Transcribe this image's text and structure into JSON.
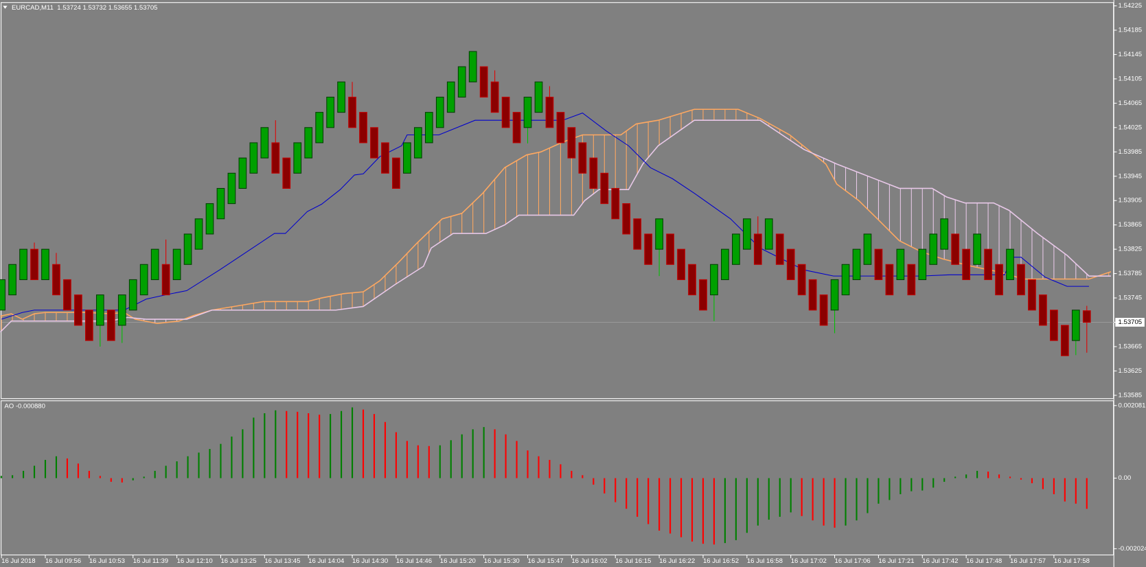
{
  "chart_data": [
    {
      "type": "candlestick",
      "title": "EURCAD,M11  1.53724 1.53732 1.53655 1.53705",
      "categories": [
        "16 Jul 2018",
        null,
        null,
        null,
        "16 Jul 09:56",
        null,
        null,
        null,
        "16 Jul 10:53",
        null,
        null,
        null,
        "16 Jul 11:39",
        null,
        null,
        null,
        "16 Jul 12:10",
        null,
        null,
        null,
        "16 Jul 13:25",
        null,
        null,
        null,
        "16 Jul 13:45",
        null,
        null,
        null,
        "16 Jul 14:04",
        null,
        null,
        null,
        "16 Jul 14:30",
        null,
        null,
        null,
        "16 Jul 14:46",
        null,
        null,
        null,
        "16 Jul 15:20",
        null,
        null,
        null,
        "16 Jul 15:30",
        null,
        null,
        null,
        "16 Jul 15:47",
        null,
        null,
        null,
        "16 Jul 16:02",
        null,
        null,
        null,
        "16 Jul 16:15",
        null,
        null,
        null,
        "16 Jul 16:22",
        null,
        null,
        null,
        "16 Jul 16:52",
        null,
        null,
        null,
        "16 Jul 16:58",
        null,
        null,
        null,
        "16 Jul 17:02",
        null,
        null,
        null,
        "16 Jul 17:06",
        null,
        null,
        null,
        "16 Jul 17:21",
        null,
        null,
        null,
        "16 Jul 17:42",
        null,
        null,
        null,
        "16 Jul 17:48",
        null,
        null,
        null,
        "16 Jul 17:57",
        null,
        null,
        null,
        "16 Jul 17:58",
        null,
        null,
        null
      ],
      "open": [
        1.53725,
        1.5375,
        1.53775,
        1.53825,
        1.53775,
        1.538,
        1.53775,
        1.5375,
        1.53725,
        1.537,
        1.53725,
        1.537,
        1.53725,
        1.5375,
        1.53775,
        1.538,
        1.53775,
        1.538,
        1.53825,
        1.5385,
        1.53875,
        1.539,
        1.53925,
        1.5395,
        1.53975,
        1.54,
        1.53975,
        1.5395,
        1.53975,
        1.54,
        1.54025,
        1.5405,
        1.54075,
        1.5405,
        1.54025,
        1.54,
        1.53975,
        1.5395,
        1.53975,
        1.54,
        1.54025,
        1.5405,
        1.54075,
        1.541,
        1.54125,
        1.541,
        1.54075,
        1.5405,
        1.54025,
        1.5405,
        1.54075,
        1.5405,
        1.54025,
        1.54,
        1.53975,
        1.5395,
        1.53925,
        1.539,
        1.53875,
        1.5385,
        1.53825,
        1.5385,
        1.53825,
        1.538,
        1.53775,
        1.5375,
        1.53775,
        1.538,
        1.53825,
        1.5385,
        1.53825,
        1.5385,
        1.53825,
        1.538,
        1.53775,
        1.5375,
        1.53725,
        1.5375,
        1.53775,
        1.538,
        1.53825,
        1.538,
        1.53775,
        1.538,
        1.53775,
        1.538,
        1.53825,
        1.5385,
        1.53825,
        1.538,
        1.53825,
        1.538,
        1.53775,
        1.538,
        1.53775,
        1.5375,
        1.53725,
        1.537,
        1.53675,
        1.53724
      ],
      "high": [
        1.53775,
        1.538,
        1.53825,
        1.53836,
        1.53825,
        1.53819,
        1.53775,
        1.5375,
        1.53725,
        1.5375,
        1.53725,
        1.5375,
        1.53775,
        1.538,
        1.53825,
        1.53841,
        1.53825,
        1.5385,
        1.53875,
        1.539,
        1.53925,
        1.5395,
        1.53975,
        1.54,
        1.54025,
        1.54037,
        1.53975,
        1.54,
        1.54025,
        1.5405,
        1.54075,
        1.541,
        1.541,
        1.5405,
        1.54025,
        1.54,
        1.53975,
        1.54,
        1.54025,
        1.5405,
        1.54075,
        1.541,
        1.54125,
        1.5415,
        1.54125,
        1.54119,
        1.54075,
        1.5405,
        1.54075,
        1.541,
        1.54093,
        1.5405,
        1.54025,
        1.54,
        1.53975,
        1.5395,
        1.53925,
        1.539,
        1.53875,
        1.5385,
        1.53875,
        1.5385,
        1.53825,
        1.538,
        1.53775,
        1.538,
        1.53825,
        1.5385,
        1.53875,
        1.53879,
        1.53875,
        1.5385,
        1.53825,
        1.538,
        1.53775,
        1.5375,
        1.53775,
        1.538,
        1.53825,
        1.5385,
        1.53825,
        1.538,
        1.53825,
        1.538,
        1.53825,
        1.5385,
        1.53875,
        1.5385,
        1.53825,
        1.5385,
        1.53825,
        1.538,
        1.53825,
        1.538,
        1.53775,
        1.5375,
        1.53725,
        1.537,
        1.53725,
        1.53732
      ],
      "low": [
        1.53725,
        1.5375,
        1.53775,
        1.53775,
        1.53775,
        1.5375,
        1.53725,
        1.537,
        1.53675,
        1.53665,
        1.53675,
        1.53671,
        1.53725,
        1.5375,
        1.53775,
        1.5375,
        1.53775,
        1.538,
        1.53825,
        1.5385,
        1.53875,
        1.539,
        1.53925,
        1.5395,
        1.53975,
        1.5395,
        1.53925,
        1.5395,
        1.53975,
        1.54,
        1.54025,
        1.5405,
        1.54025,
        1.54,
        1.53975,
        1.5395,
        1.53925,
        1.5395,
        1.53975,
        1.54,
        1.54025,
        1.5405,
        1.54075,
        1.541,
        1.54075,
        1.5405,
        1.54025,
        1.54,
        1.53999,
        1.5405,
        1.54025,
        1.54,
        1.53975,
        1.5395,
        1.53925,
        1.539,
        1.53875,
        1.5385,
        1.53825,
        1.538,
        1.53781,
        1.538,
        1.53775,
        1.5375,
        1.53725,
        1.53707,
        1.53775,
        1.538,
        1.53825,
        1.538,
        1.53825,
        1.538,
        1.53775,
        1.5375,
        1.53725,
        1.537,
        1.53687,
        1.5375,
        1.53775,
        1.538,
        1.53775,
        1.5375,
        1.53775,
        1.5375,
        1.53775,
        1.538,
        1.53825,
        1.538,
        1.53775,
        1.538,
        1.53775,
        1.5375,
        1.53775,
        1.5375,
        1.53725,
        1.537,
        1.53675,
        1.5365,
        1.53651,
        1.53655
      ],
      "close": [
        1.53775,
        1.538,
        1.53825,
        1.53775,
        1.53825,
        1.5375,
        1.53725,
        1.537,
        1.53675,
        1.5375,
        1.53675,
        1.5375,
        1.53775,
        1.538,
        1.53825,
        1.5375,
        1.53825,
        1.5385,
        1.53875,
        1.539,
        1.53925,
        1.5395,
        1.53975,
        1.54,
        1.54025,
        1.5395,
        1.53925,
        1.54,
        1.54025,
        1.5405,
        1.54075,
        1.541,
        1.54025,
        1.54,
        1.53975,
        1.5395,
        1.53925,
        1.54,
        1.54025,
        1.5405,
        1.54075,
        1.541,
        1.54125,
        1.5415,
        1.54075,
        1.5405,
        1.54025,
        1.54,
        1.54075,
        1.541,
        1.54025,
        1.54,
        1.53975,
        1.5395,
        1.53925,
        1.539,
        1.53875,
        1.5385,
        1.53825,
        1.538,
        1.53875,
        1.538,
        1.53775,
        1.5375,
        1.53725,
        1.538,
        1.53825,
        1.5385,
        1.53875,
        1.538,
        1.53875,
        1.538,
        1.53775,
        1.5375,
        1.53725,
        1.537,
        1.53775,
        1.538,
        1.53825,
        1.5385,
        1.53775,
        1.5375,
        1.53825,
        1.5375,
        1.53825,
        1.5385,
        1.53875,
        1.538,
        1.53775,
        1.5385,
        1.53775,
        1.5375,
        1.53825,
        1.5375,
        1.53725,
        1.537,
        1.53675,
        1.5365,
        1.53725,
        1.53705
      ],
      "up_color": "#00a000",
      "down_color": "#8b0000",
      "ylim": [
        1.53579,
        1.54231
      ],
      "yticks": [
        1.54225,
        1.54185,
        1.54145,
        1.54105,
        1.54065,
        1.54025,
        1.53985,
        1.53945,
        1.53905,
        1.53865,
        1.53825,
        1.53785,
        1.53745,
        1.53705,
        1.53665,
        1.53625,
        1.53585
      ],
      "current_price": 1.53705,
      "cloud": {
        "span_a": {
          "color": "#ffa860",
          "x": [
            -0.1,
            0.9,
            1.9,
            3,
            4,
            7.9,
            9.9,
            11.2,
            12.2,
            14.2,
            16.2,
            17.5,
            19.2,
            21.9,
            23.9,
            27.9,
            29.2,
            31.2,
            33,
            34.5,
            36.2,
            37.9,
            40.2,
            42,
            43.9,
            45.9,
            47.9,
            49.2,
            51.2,
            53,
            56.5,
            57.9,
            59.9,
            63.2,
            67.2,
            69.2,
            71.9,
            75.2,
            76.2,
            78.2,
            79.9,
            81.9,
            83.9,
            85.9,
            88.5,
            91.2,
            93.2,
            99.2,
            101.2
          ],
          "values": [
            1.53715,
            1.53719,
            1.5371,
            1.53719,
            1.53721,
            1.53721,
            1.53719,
            1.53721,
            1.5371,
            1.53703,
            1.53707,
            1.53716,
            1.53725,
            1.53733,
            1.53739,
            1.53739,
            1.53745,
            1.53752,
            1.53755,
            1.53773,
            1.53803,
            1.53835,
            1.53875,
            1.53884,
            1.53917,
            1.53959,
            1.5398,
            1.53985,
            1.54001,
            1.54013,
            1.54013,
            1.54031,
            1.54037,
            1.54055,
            1.54055,
            1.5404,
            1.54013,
            1.53965,
            1.53932,
            1.53905,
            1.53875,
            1.53839,
            1.53821,
            1.53809,
            1.53797,
            1.53787,
            1.53776,
            1.53776,
            1.53788
          ]
        },
        "span_b": {
          "color": "#e8c8e8",
          "x": [
            -0.1,
            0.9,
            9.9,
            11.5,
            13.2,
            16.9,
            19.2,
            30.5,
            33,
            35.9,
            38.5,
            39.2,
            41.2,
            44.2,
            45.9,
            47.2,
            52.2,
            53.2,
            54.5,
            57.2,
            58.5,
            59.9,
            63.2,
            69.2,
            73.2,
            76.2,
            81.9,
            84.9,
            86.2,
            87.9,
            90.5,
            91.9,
            94.5,
            97.2,
            99.2,
            101.2
          ],
          "values": [
            1.53689,
            1.53707,
            1.53707,
            1.53713,
            1.5371,
            1.5371,
            1.53725,
            1.53725,
            1.53731,
            1.53767,
            1.53797,
            1.53827,
            1.53851,
            1.53851,
            1.53865,
            1.53881,
            1.53881,
            1.53905,
            1.53923,
            1.53923,
            1.53965,
            1.53995,
            1.54037,
            1.54037,
            1.53989,
            1.53965,
            1.53925,
            1.53925,
            1.53911,
            1.53901,
            1.53901,
            1.53889,
            1.53851,
            1.53815,
            1.53781,
            1.53781
          ]
        }
      },
      "lines": [
        {
          "color": "#0000cc",
          "x": [
            0,
            1.9,
            3,
            7.2,
            11.2,
            13.2,
            15.2,
            16.9,
            19.9,
            24.9,
            25.9,
            27.9,
            29.2,
            30.9,
            32.2,
            33,
            34.5,
            36.5,
            37,
            39.9,
            43.2,
            51.2,
            53,
            55.2,
            57.2,
            59.2,
            61.2,
            63.2,
            66.5,
            69.2,
            71.2,
            73.2,
            75.9,
            83.9,
            86.5,
            91.5,
            92.2,
            93,
            95.2,
            97.2,
            99.2
          ],
          "values": [
            1.5371,
            1.53721,
            1.53725,
            1.53725,
            1.53725,
            1.53743,
            1.53751,
            1.53757,
            1.53791,
            1.53851,
            1.53851,
            1.53887,
            1.53899,
            1.53923,
            1.53947,
            1.53949,
            1.53977,
            1.53995,
            1.54013,
            1.54013,
            1.54037,
            1.54037,
            1.54049,
            1.54019,
            1.53995,
            1.53959,
            1.53941,
            1.53917,
            1.53875,
            1.53827,
            1.53809,
            1.53791,
            1.53781,
            1.53781,
            1.53783,
            1.53783,
            1.53812,
            1.53812,
            1.53779,
            1.53764,
            1.53764
          ]
        }
      ]
    },
    {
      "type": "histogram",
      "title": "AO -0.000880",
      "values": [
        6.3e-05,
        8.4e-05,
        0.000209,
        0.000355,
        0.000523,
        0.000627,
        0.000564,
        0.000418,
        0.000209,
        6.3e-05,
        -0.000105,
        -0.000125,
        -6.3e-05,
        4.2e-05,
        0.000209,
        0.000355,
        0.000481,
        0.000627,
        0.000732,
        0.000836,
        0.000982,
        0.001191,
        0.0014,
        0.001735,
        0.00186,
        0.001944,
        0.001923,
        0.001902,
        0.00186,
        0.001818,
        0.001839,
        0.001923,
        0.002027,
        0.001965,
        0.001839,
        0.001609,
        0.001317,
        0.001066,
        0.000941,
        0.00092,
        0.000941,
        0.001087,
        0.001254,
        0.0014,
        0.001463,
        0.0014,
        0.001254,
        0.001066,
        0.000794,
        0.000627,
        0.000523,
        0.000397,
        0.000209,
        8.4e-05,
        -0.000188,
        -0.000439,
        -0.00069,
        -0.000878,
        -0.001108,
        -0.001317,
        -0.001505,
        -0.001588,
        -0.001693,
        -0.001818,
        -0.001881,
        -0.001902,
        -0.00186,
        -0.001777,
        -0.001568,
        -0.001359,
        -0.001191,
        -0.001108,
        -0.000982,
        -0.001087,
        -0.001212,
        -0.001359,
        -0.001421,
        -0.001359,
        -0.001212,
        -0.001003,
        -0.000732,
        -0.000627,
        -0.00046,
        -0.000376,
        -0.000355,
        -0.000272,
        -0.000105,
        4.2e-05,
        0.000105,
        0.000209,
        0.000188,
        0.000105,
        4.2e-05,
        -4.2e-05,
        -0.000146,
        -0.000314,
        -0.00046,
        -0.000669,
        -0.000732,
        -0.00088
      ],
      "up_color": "#008000",
      "down_color": "#ff0000",
      "ylim": [
        -0.002212,
        0.002228
      ],
      "yticks": [
        0.002081,
        {
          "value": 0,
          "label": "0.00"
        },
        -0.002024
      ]
    }
  ]
}
